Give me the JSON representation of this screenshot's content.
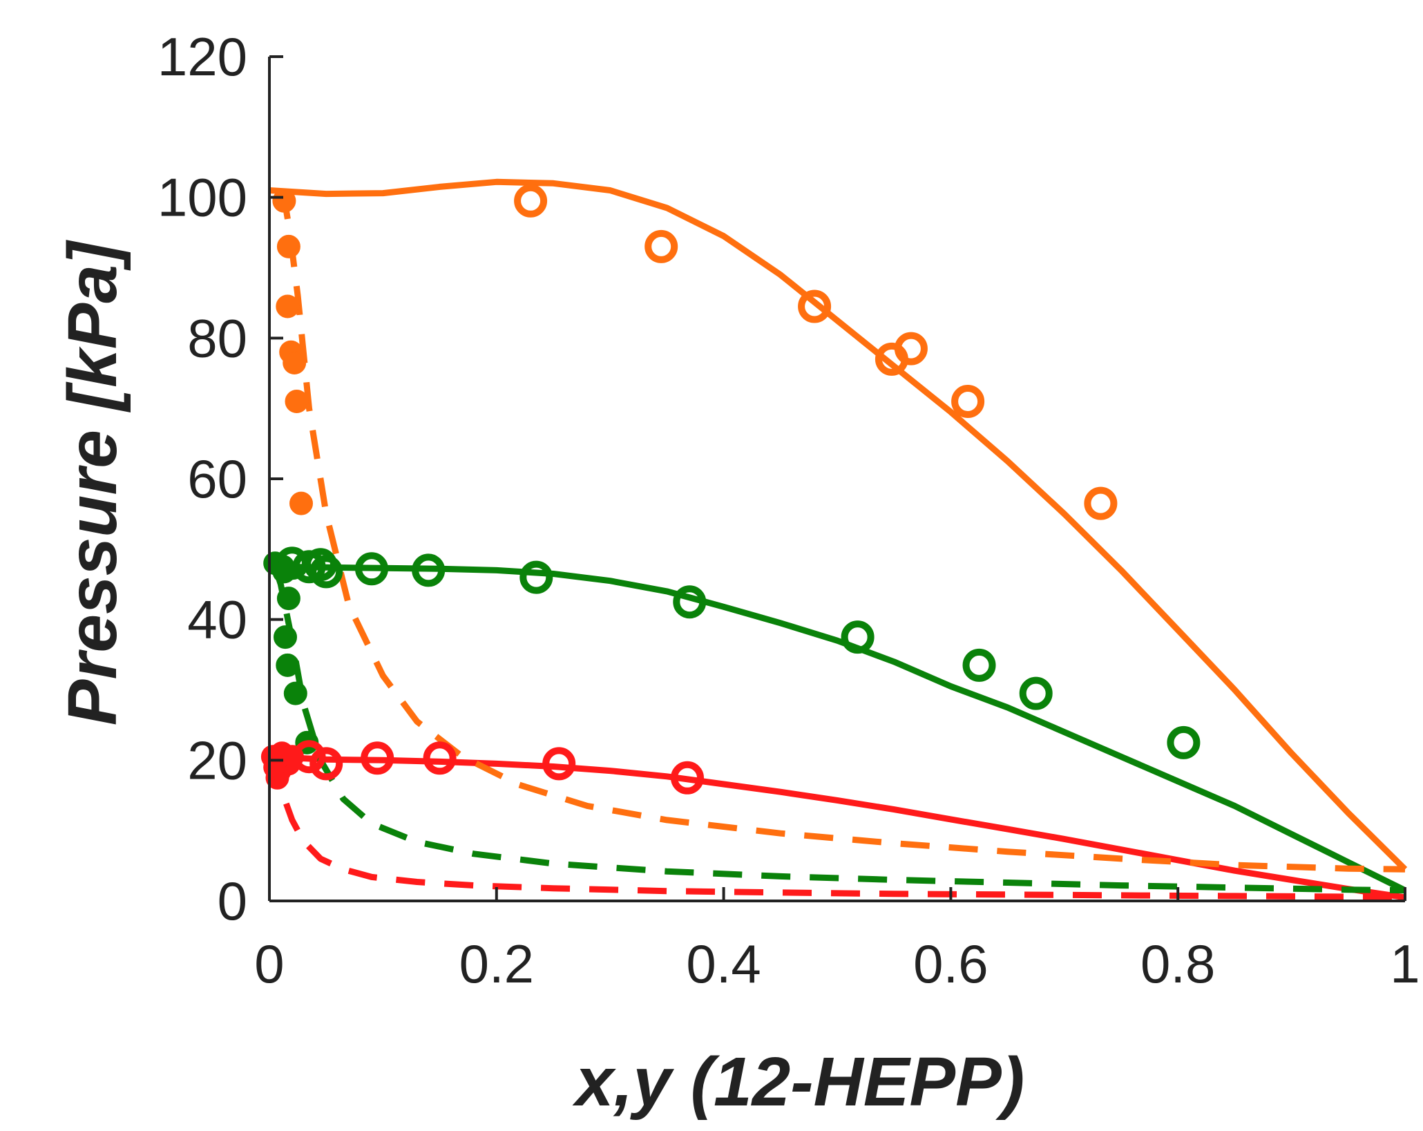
{
  "chart_data": {
    "type": "scatter",
    "title": "",
    "xlabel": "x,y (12-HEPP)",
    "ylabel": "Pressure [kPa]",
    "xlim": [
      0,
      1
    ],
    "ylim": [
      0,
      120
    ],
    "xticks": [
      0,
      0.2,
      0.4,
      0.6,
      0.8,
      1
    ],
    "xtick_labels": [
      "0",
      "0.2",
      "0.4",
      "0.6",
      "0.8",
      "1"
    ],
    "yticks": [
      0,
      20,
      40,
      60,
      80,
      100,
      120
    ],
    "ytick_labels": [
      "0",
      "20",
      "40",
      "60",
      "80",
      "100",
      "120"
    ],
    "grid": false,
    "series": [
      {
        "name": "orange-liquid-model",
        "color": "#ff6f0f",
        "style": "solid",
        "x": [
          0.0,
          0.05,
          0.1,
          0.15,
          0.2,
          0.25,
          0.3,
          0.35,
          0.4,
          0.45,
          0.5,
          0.55,
          0.6,
          0.65,
          0.7,
          0.75,
          0.8,
          0.85,
          0.9,
          0.95,
          1.0
        ],
        "y": [
          101.0,
          100.5,
          100.6,
          101.5,
          102.2,
          102.0,
          101.0,
          98.5,
          94.5,
          89.0,
          82.5,
          76.0,
          69.5,
          62.5,
          55.0,
          47.0,
          38.5,
          30.0,
          21.0,
          12.5,
          4.5
        ]
      },
      {
        "name": "green-liquid-model",
        "color": "#0a820a",
        "style": "solid",
        "x": [
          0.0,
          0.05,
          0.1,
          0.15,
          0.2,
          0.25,
          0.3,
          0.35,
          0.4,
          0.45,
          0.5,
          0.55,
          0.6,
          0.65,
          0.7,
          0.75,
          0.8,
          0.85,
          0.9,
          0.95,
          1.0
        ],
        "y": [
          47.5,
          47.4,
          47.3,
          47.2,
          47.0,
          46.5,
          45.5,
          44.0,
          41.8,
          39.5,
          37.0,
          34.0,
          30.5,
          27.5,
          24.0,
          20.5,
          17.0,
          13.5,
          9.5,
          5.5,
          1.5
        ]
      },
      {
        "name": "red-liquid-model",
        "color": "#ff1a1a",
        "style": "solid",
        "x": [
          0.0,
          0.05,
          0.1,
          0.15,
          0.2,
          0.25,
          0.3,
          0.35,
          0.4,
          0.45,
          0.5,
          0.55,
          0.6,
          0.65,
          0.7,
          0.75,
          0.8,
          0.85,
          0.9,
          0.95,
          1.0
        ],
        "y": [
          20.5,
          20.1,
          20.0,
          19.8,
          19.5,
          19.1,
          18.5,
          17.7,
          16.6,
          15.5,
          14.3,
          13.0,
          11.6,
          10.2,
          8.8,
          7.3,
          5.8,
          4.3,
          3.0,
          1.7,
          0.5
        ]
      },
      {
        "name": "orange-vapor-model",
        "color": "#ff6f0f",
        "style": "dashed",
        "x": [
          0.012,
          0.018,
          0.025,
          0.035,
          0.05,
          0.07,
          0.1,
          0.13,
          0.17,
          0.22,
          0.28,
          0.35,
          0.45,
          0.55,
          0.65,
          0.75,
          0.85,
          0.95,
          1.0
        ],
        "y": [
          101.0,
          95.0,
          86.0,
          70.0,
          55.0,
          42.0,
          32.0,
          25.5,
          20.5,
          16.5,
          13.5,
          11.5,
          9.6,
          8.2,
          7.0,
          6.0,
          5.1,
          4.6,
          4.5
        ]
      },
      {
        "name": "green-vapor-model",
        "color": "#0a820a",
        "style": "dashed",
        "x": [
          0.005,
          0.01,
          0.02,
          0.03,
          0.045,
          0.065,
          0.09,
          0.13,
          0.18,
          0.25,
          0.35,
          0.45,
          0.55,
          0.65,
          0.75,
          0.85,
          0.95,
          1.0
        ],
        "y": [
          47.5,
          45.0,
          37.0,
          28.0,
          20.0,
          14.5,
          11.0,
          8.4,
          6.7,
          5.3,
          4.2,
          3.5,
          3.0,
          2.6,
          2.2,
          1.9,
          1.6,
          1.5
        ]
      },
      {
        "name": "red-vapor-model",
        "color": "#ff1a1a",
        "style": "dashed",
        "x": [
          0.005,
          0.01,
          0.02,
          0.03,
          0.045,
          0.065,
          0.09,
          0.13,
          0.18,
          0.25,
          0.35,
          0.45,
          0.55,
          0.65,
          0.75,
          0.85,
          0.95,
          1.0
        ],
        "y": [
          20.5,
          16.0,
          11.5,
          8.5,
          6.0,
          4.5,
          3.4,
          2.7,
          2.2,
          1.8,
          1.4,
          1.2,
          1.0,
          0.9,
          0.8,
          0.7,
          0.6,
          0.5
        ]
      },
      {
        "name": "orange-liquid-experimental",
        "color": "#ff6f0f",
        "marker": "open-circle",
        "x": [
          0.23,
          0.345,
          0.48,
          0.548,
          0.565,
          0.615,
          0.732
        ],
        "y": [
          99.5,
          93.0,
          84.5,
          77.0,
          78.5,
          71.0,
          56.5
        ]
      },
      {
        "name": "orange-vapor-experimental",
        "color": "#ff6f0f",
        "marker": "filled-circle",
        "x": [
          0.013,
          0.017,
          0.016,
          0.019,
          0.022,
          0.024,
          0.028
        ],
        "y": [
          99.5,
          93.0,
          84.5,
          78.0,
          76.5,
          71.0,
          56.5
        ]
      },
      {
        "name": "green-liquid-experimental",
        "color": "#0a820a",
        "marker": "open-circle",
        "x": [
          0.02,
          0.035,
          0.045,
          0.05,
          0.09,
          0.14,
          0.235,
          0.37,
          0.518,
          0.625,
          0.675,
          0.805
        ],
        "y": [
          48.0,
          47.5,
          47.8,
          46.8,
          47.2,
          47.0,
          46.0,
          42.5,
          37.5,
          33.5,
          29.5,
          22.5
        ]
      },
      {
        "name": "green-vapor-experimental",
        "color": "#0a820a",
        "marker": "filled-circle",
        "x": [
          0.005,
          0.012,
          0.013,
          0.017,
          0.014,
          0.016,
          0.023,
          0.033
        ],
        "y": [
          48.0,
          47.5,
          46.8,
          43.0,
          37.5,
          33.5,
          29.5,
          22.5
        ]
      },
      {
        "name": "red-liquid-experimental",
        "color": "#ff1a1a",
        "marker": "open-circle",
        "x": [
          0.035,
          0.05,
          0.095,
          0.15,
          0.255,
          0.368
        ],
        "y": [
          20.5,
          19.5,
          20.3,
          20.3,
          19.5,
          17.5
        ]
      },
      {
        "name": "red-vapor-experimental",
        "color": "#ff1a1a",
        "marker": "filled-circle",
        "x": [
          0.003,
          0.005,
          0.007,
          0.009,
          0.011,
          0.014,
          0.017,
          0.02
        ],
        "y": [
          20.5,
          19.0,
          17.5,
          18.5,
          21.0,
          20.0,
          19.5,
          20.5
        ]
      }
    ]
  }
}
